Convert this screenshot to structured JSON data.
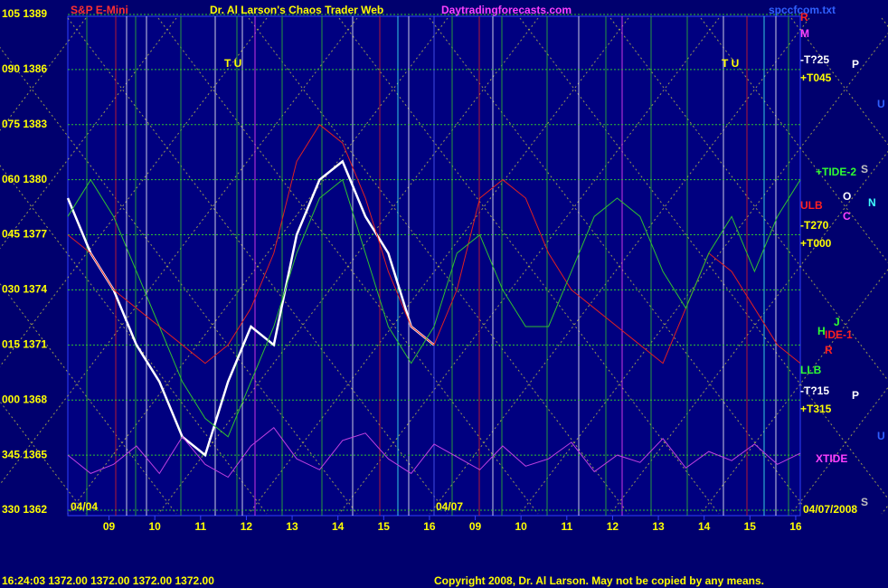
{
  "header": {
    "instrument": "S&P E-Mini",
    "title": "Dr. Al Larson's Chaos Trader Web",
    "site": "Daytradingforecasts.com",
    "file": "spccfcom.txt"
  },
  "chart_data": {
    "type": "line",
    "x": [
      0.1,
      0.6,
      1.1,
      1.6,
      2.1,
      2.6,
      3.1,
      3.6,
      4.1,
      4.6,
      5.1,
      5.6,
      6.1,
      6.6,
      7.1,
      7.6,
      8.1,
      8.6,
      9.1,
      9.6,
      10.1,
      10.6,
      11.1,
      11.6,
      12.1,
      12.6,
      13.1,
      13.6,
      14.1,
      14.6,
      15.1,
      15.6,
      16.1
    ],
    "series": [
      {
        "color": "#ffffff",
        "values": [
          1379,
          1376,
          1374,
          1371,
          1369,
          1366,
          1365,
          1369,
          1372,
          1371,
          1377,
          1380,
          1381,
          1378,
          1376,
          1372,
          1371,
          null,
          null,
          null,
          null,
          null,
          null,
          null,
          null,
          null,
          null,
          null,
          null,
          null,
          null,
          null,
          null
        ]
      },
      {
        "color": "#e02020",
        "values": [
          1377,
          1376,
          1374,
          1373,
          1372,
          1371,
          1370,
          1371,
          1373,
          1376,
          1381,
          1383,
          1382,
          1379,
          1375,
          1372,
          1371,
          1374,
          1379,
          1380,
          1379,
          1376,
          1374,
          1373,
          1372,
          1371,
          1370,
          1373,
          1376,
          1375,
          1373,
          1371,
          1370
        ]
      },
      {
        "color": "#30c030",
        "values": [
          1378,
          1380,
          1378,
          1375,
          1372,
          1369,
          1367,
          1366,
          1369,
          1372,
          1376,
          1379,
          1380,
          1376,
          1372,
          1370,
          1372,
          1376,
          1377,
          1374,
          1372,
          1372,
          1375,
          1378,
          1379,
          1378,
          1375,
          1373,
          1376,
          1378,
          1375,
          1378,
          1380
        ]
      },
      {
        "color": "#c040e0",
        "values": [
          1365,
          1364,
          1364.5,
          1365.5,
          1364,
          1366,
          1364.5,
          1363.8,
          1365.5,
          1366.5,
          1364.8,
          1364.2,
          1365.8,
          1366.2,
          1364.8,
          1364,
          1365.6,
          1364.9,
          1364.2,
          1365.5,
          1364.4,
          1364.8,
          1365.7,
          1364.1,
          1365,
          1364.6,
          1365.9,
          1364.3,
          1365.2,
          1364.7,
          1365.6,
          1364.5,
          1365.1
        ]
      }
    ],
    "xlim": [
      0.1,
      16.1
    ],
    "xticks": [
      {
        "value": 1,
        "label": "09"
      },
      {
        "value": 2,
        "label": "10"
      },
      {
        "value": 3,
        "label": "11"
      },
      {
        "value": 4,
        "label": "12"
      },
      {
        "value": 5,
        "label": "13"
      },
      {
        "value": 6,
        "label": "14"
      },
      {
        "value": 7,
        "label": "15"
      },
      {
        "value": 8,
        "label": "16"
      },
      {
        "value": 9,
        "label": "09"
      },
      {
        "value": 10,
        "label": "10"
      },
      {
        "value": 11,
        "label": "11"
      },
      {
        "value": 12,
        "label": "12"
      },
      {
        "value": 13,
        "label": "13"
      },
      {
        "value": 14,
        "label": "14"
      },
      {
        "value": 15,
        "label": "15"
      },
      {
        "value": 16,
        "label": "16"
      }
    ],
    "ylim": [
      1362,
      1389
    ],
    "yticks": [
      {
        "value": 1389,
        "label": "105 1389"
      },
      {
        "value": 1386,
        "label": "090 1386"
      },
      {
        "value": 1383,
        "label": "075 1383"
      },
      {
        "value": 1380,
        "label": "060 1380"
      },
      {
        "value": 1377,
        "label": "045 1377"
      },
      {
        "value": 1374,
        "label": "030 1374"
      },
      {
        "value": 1371,
        "label": "015 1371"
      },
      {
        "value": 1368,
        "label": "000 1368"
      },
      {
        "value": 1365,
        "label": "345 1365"
      },
      {
        "value": 1362,
        "label": "330 1362"
      }
    ],
    "grid": true,
    "date_labels": [
      "04/04",
      "04/07",
      "04/07/2008"
    ],
    "annotations": [
      "R",
      "M",
      "-T?25",
      "+T045",
      "P",
      "U",
      "+TIDE-2",
      "S",
      "ULB",
      "O",
      "N",
      "C",
      "-T270",
      "+T000",
      "J",
      "H",
      "IDE-1",
      "R",
      "LLB",
      "-T?15",
      "P",
      "+T315",
      "U",
      "XTIDE",
      "S",
      "T U",
      "T U"
    ]
  },
  "footer": {
    "quote": "16:24:03  1372.00 1372.00 1372.00 1372.00",
    "copyright": "Copyright 2008, Dr. Al Larson. May not be copied by any means."
  }
}
